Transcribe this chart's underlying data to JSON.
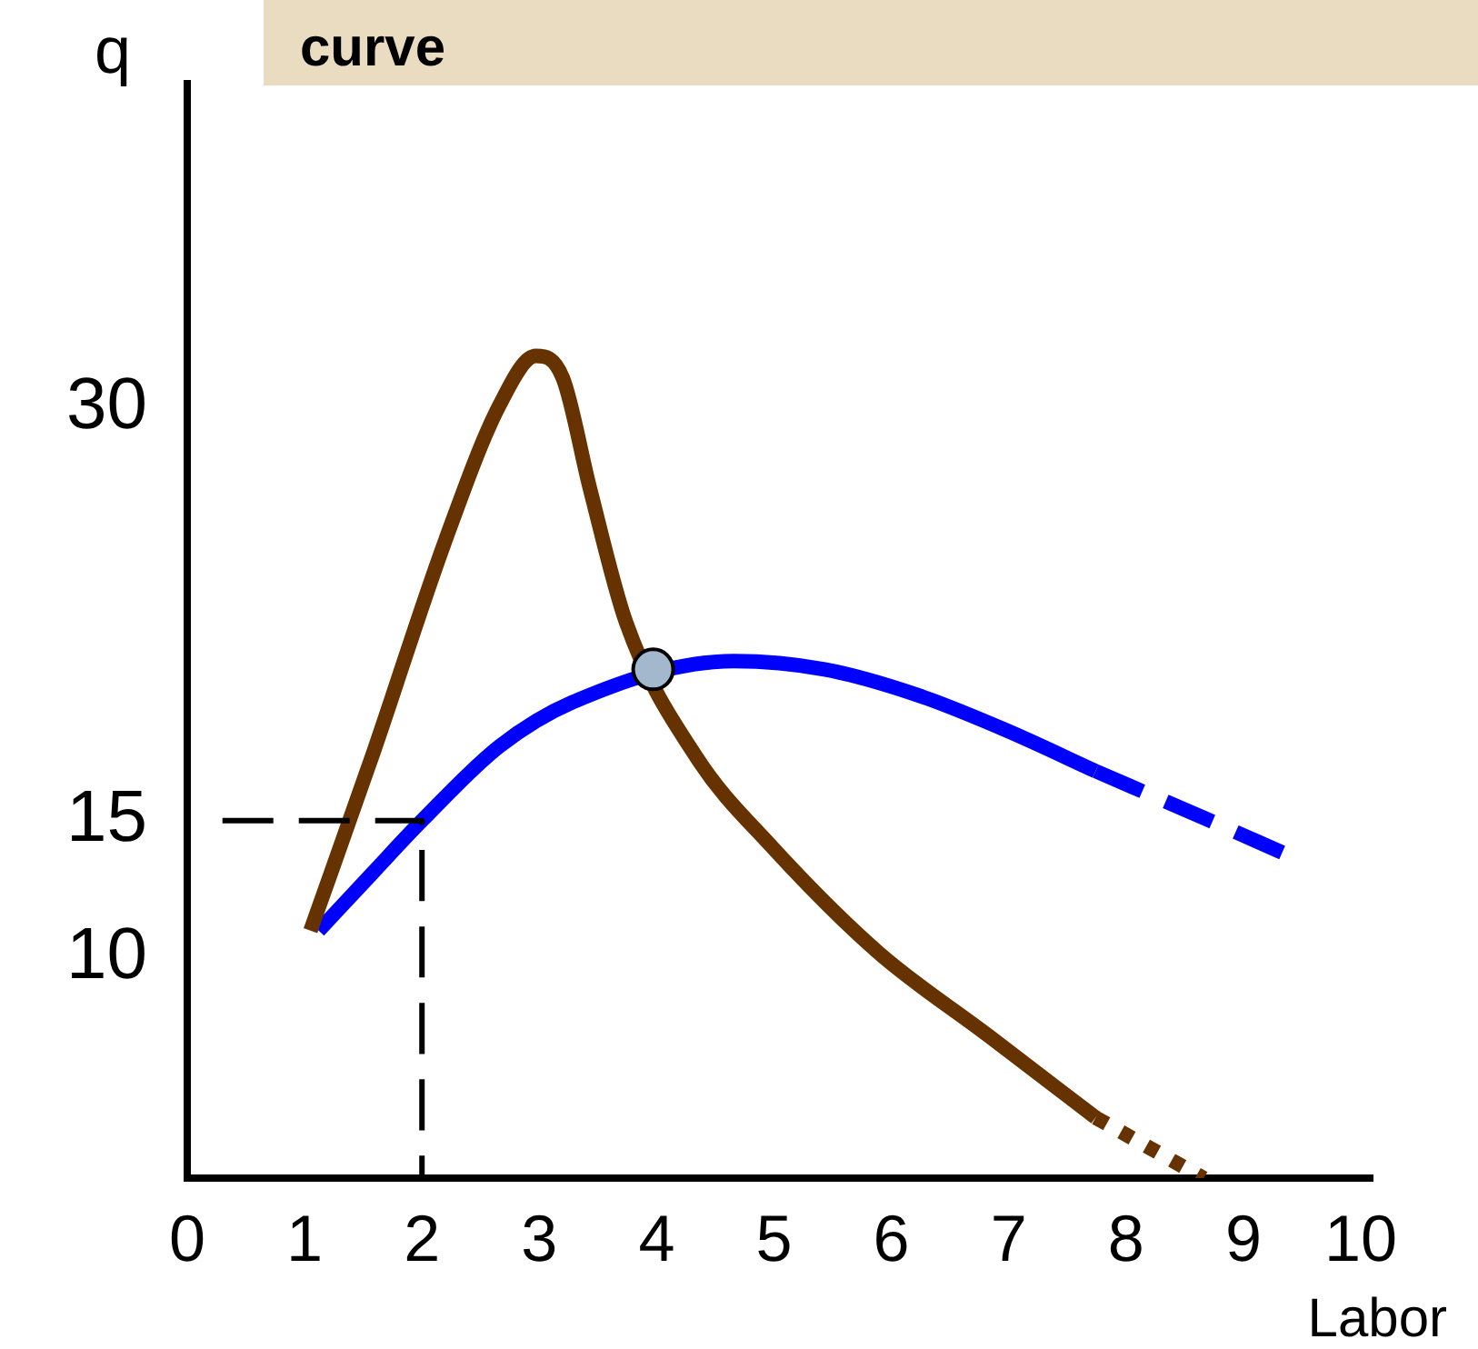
{
  "chart_data": {
    "type": "line",
    "title": "curve",
    "xlabel": "Labor",
    "ylabel": "q",
    "xlim": [
      0,
      10.1
    ],
    "xticks": [
      0,
      1,
      2,
      3,
      4,
      5,
      6,
      7,
      8,
      9,
      10
    ],
    "ylim": [
      2,
      41.8
    ],
    "yticks": [
      10,
      15,
      30
    ],
    "series": [
      {
        "type": "line",
        "color": "#000000",
        "line_style": "dashed",
        "x": [
          0.3,
          2,
          2
        ],
        "values": [
          15,
          15,
          2
        ]
      },
      {
        "type": "line",
        "color": "#663300",
        "line_style": "solid",
        "x": [
          1.05,
          1.58,
          2.2,
          2.66,
          2.97,
          3.2,
          3.43,
          3.74,
          4.34,
          4.97,
          5.89,
          6.82,
          7.74
        ],
        "values": [
          11,
          17.4,
          25.2,
          30.1,
          31.9,
          31.1,
          27.1,
          22.2,
          17.3,
          14.1,
          10.2,
          7.2,
          4.2
        ]
      },
      {
        "type": "line",
        "color": "#663300",
        "line_style": "dotted",
        "x": [
          7.74,
          8.2,
          8.66
        ],
        "values": [
          4.2,
          3.1,
          2
        ]
      },
      {
        "type": "line",
        "color": "#0000ff",
        "line_style": "solid",
        "x": [
          1.12,
          1.58,
          2,
          2.66,
          3.28,
          4.66,
          5.43,
          6.2,
          6.97,
          7.74
        ],
        "values": [
          11,
          13.1,
          15,
          17.7,
          19.3,
          20.8,
          20.5,
          19.6,
          18.3,
          16.8
        ]
      },
      {
        "type": "line",
        "color": "#0000ff",
        "line_style": "dashed",
        "x": [
          7.74,
          8.66,
          9.35
        ],
        "values": [
          16.8,
          15.1,
          13.8
        ]
      },
      {
        "type": "scatter",
        "color": "#a3b8cc",
        "marker": "circle",
        "x": [
          3.97
        ],
        "values": [
          20.5
        ]
      }
    ]
  }
}
